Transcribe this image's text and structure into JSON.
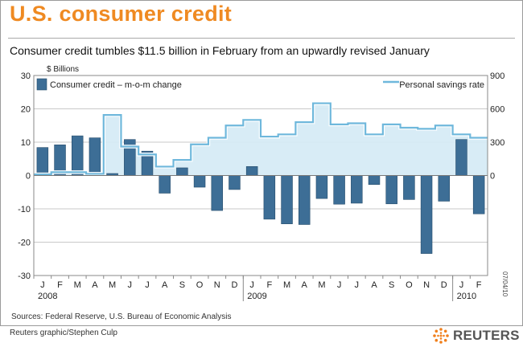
{
  "header": {
    "title": "U.S. consumer credit",
    "subtitle": "Consumer credit tumbles $11.5 billion in February from an upwardly revised January"
  },
  "footer": {
    "source": "Sources: Federal Reserve, U.S. Bureau of Economic Analysis",
    "credit": "Reuters graphic/Stephen Culp",
    "logo_text": "REUTERS",
    "date_stamp": "07/04/10"
  },
  "colors": {
    "title": "#ef8a22",
    "bar": "#3d6e96",
    "savings_line": "#6fb8dc",
    "savings_fill": "#d6ebf5"
  },
  "chart_data": {
    "type": "bar",
    "title": "U.S. consumer credit",
    "left_axis_unit": "$ Billions",
    "ylim": [
      -30,
      30
    ],
    "left_ticks": [
      "30",
      "20",
      "10",
      "0",
      "-10",
      "-20",
      "-30"
    ],
    "y2lim": [
      -900,
      900
    ],
    "right_ticks": [
      "900",
      "600",
      "300",
      "0"
    ],
    "month_labels": [
      "J",
      "F",
      "M",
      "A",
      "M",
      "J",
      "J",
      "A",
      "S",
      "O",
      "N",
      "D",
      "J",
      "F",
      "M",
      "A",
      "M",
      "J",
      "J",
      "A",
      "S",
      "O",
      "N",
      "D",
      "J",
      "F"
    ],
    "year_labels": [
      {
        "label": "2008",
        "start_index": 0
      },
      {
        "label": "2009",
        "start_index": 12
      },
      {
        "label": "2010",
        "start_index": 24
      }
    ],
    "grid": true,
    "legend_placement": "top",
    "series": [
      {
        "name": "Consumer credit – m-o-m change",
        "type": "bar",
        "axis": "left",
        "values": [
          8.4,
          9.2,
          11.9,
          11.3,
          0.6,
          10.8,
          7.3,
          -5.3,
          2.3,
          -3.5,
          -10.5,
          -4.2,
          2.7,
          -13.1,
          -14.5,
          -14.7,
          -6.9,
          -8.6,
          -8.3,
          -2.7,
          -8.5,
          -7.2,
          -23.4,
          -7.7,
          10.8,
          -11.5
        ]
      },
      {
        "name": "Personal savings rate",
        "type": "area-line",
        "axis": "right",
        "values": [
          10,
          30,
          30,
          15,
          545,
          260,
          190,
          80,
          140,
          280,
          340,
          450,
          500,
          350,
          370,
          480,
          650,
          460,
          470,
          370,
          460,
          430,
          420,
          450,
          370,
          340
        ]
      }
    ]
  }
}
